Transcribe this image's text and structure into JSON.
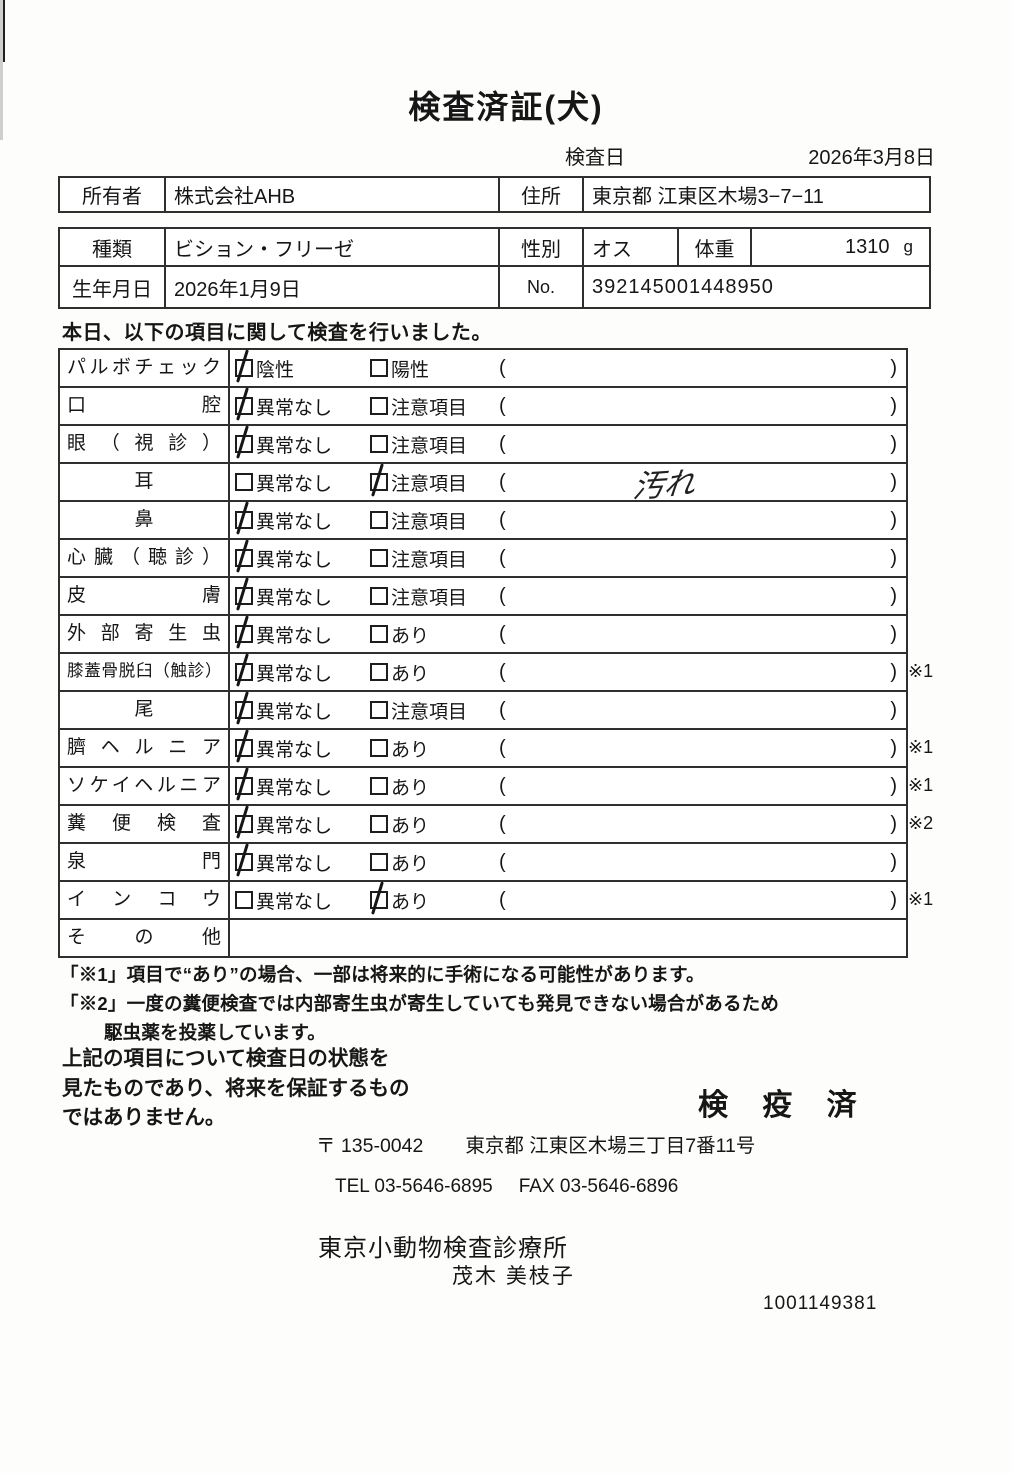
{
  "title": "検査済証(犬)",
  "inspection_date": {
    "label": "検査日",
    "value": "2026年3月8日"
  },
  "owner": {
    "owner_label": "所有者",
    "owner_value": "株式会社AHB",
    "address_label": "住所",
    "address_value": "東京都 江東区木場3−7−11"
  },
  "pet": {
    "breed_label": "種類",
    "breed_value": "ビション・フリーゼ",
    "sex_label": "性別",
    "sex_value": "オス",
    "weight_label": "体重",
    "weight_value": "1310",
    "weight_unit": "g",
    "birth_label": "生年月日",
    "birth_value": "2026年1月9日",
    "no_label": "No.",
    "no_value": "392145001448950"
  },
  "intro": "本日、以下の項目に関して検査を行いました。",
  "checklist": {
    "paren_open": "(",
    "paren_close": ")",
    "rows": [
      {
        "label": "パルボチェック",
        "align": "justify",
        "opt1": "陰性",
        "opt2": "陽性",
        "checked": 1,
        "note": "",
        "ref": ""
      },
      {
        "label": "口腔",
        "align": "justify",
        "opt1": "異常なし",
        "opt2": "注意項目",
        "checked": 1,
        "note": "",
        "ref": ""
      },
      {
        "label": "眼（視診）",
        "align": "justify",
        "opt1": "異常なし",
        "opt2": "注意項目",
        "checked": 1,
        "note": "",
        "ref": ""
      },
      {
        "label": "耳",
        "align": "center",
        "opt1": "異常なし",
        "opt2": "注意項目",
        "checked": 2,
        "note": "汚れ",
        "ref": ""
      },
      {
        "label": "鼻",
        "align": "center",
        "opt1": "異常なし",
        "opt2": "注意項目",
        "checked": 1,
        "note": "",
        "ref": ""
      },
      {
        "label": "心臓（聴診）",
        "align": "justify",
        "opt1": "異常なし",
        "opt2": "注意項目",
        "checked": 1,
        "note": "",
        "ref": ""
      },
      {
        "label": "皮膚",
        "align": "justify",
        "opt1": "異常なし",
        "opt2": "注意項目",
        "checked": 1,
        "note": "",
        "ref": ""
      },
      {
        "label": "外部寄生虫",
        "align": "justify",
        "opt1": "異常なし",
        "opt2": "あり",
        "checked": 1,
        "note": "",
        "ref": ""
      },
      {
        "label": "膝蓋骨脱臼（触診）",
        "align": "justify",
        "opt1": "異常なし",
        "opt2": "あり",
        "checked": 1,
        "note": "",
        "ref": "※1"
      },
      {
        "label": "尾",
        "align": "center",
        "opt1": "異常なし",
        "opt2": "注意項目",
        "checked": 1,
        "note": "",
        "ref": ""
      },
      {
        "label": "臍ヘルニア",
        "align": "justify",
        "opt1": "異常なし",
        "opt2": "あり",
        "checked": 1,
        "note": "",
        "ref": "※1"
      },
      {
        "label": "ソケイヘルニア",
        "align": "justify",
        "opt1": "異常なし",
        "opt2": "あり",
        "checked": 1,
        "note": "",
        "ref": "※1"
      },
      {
        "label": "糞便検査",
        "align": "justify",
        "opt1": "異常なし",
        "opt2": "あり",
        "checked": 1,
        "note": "",
        "ref": "※2"
      },
      {
        "label": "泉門",
        "align": "justify",
        "opt1": "異常なし",
        "opt2": "あり",
        "checked": 1,
        "note": "",
        "ref": ""
      },
      {
        "label": "インコウ",
        "align": "justify",
        "opt1": "異常なし",
        "opt2": "あり",
        "checked": 2,
        "note": "",
        "ref": "※1"
      },
      {
        "label": "その他",
        "align": "justify",
        "opt1": "",
        "opt2": "",
        "checked": 0,
        "note": "",
        "ref": ""
      }
    ]
  },
  "footnotes": [
    {
      "line1": "「※1」項目で“あり”の場合、一部は将来的に手術になる可能性があります。",
      "line2": ""
    },
    {
      "line1": "「※2」一度の糞便検査では内部寄生虫が寄生していても発見できない場合があるため",
      "line2": "駆虫薬を投薬しています。"
    }
  ],
  "disclaimer": [
    "上記の項目について検査日の状態を",
    "見たものであり、将来を保証するもの",
    "ではありません。"
  ],
  "stamp": "検 疫 済",
  "clinic": {
    "postal": "〒 135-0042",
    "address": "東京都 江東区木場三丁目7番11号",
    "tel": "TEL 03-5646-6895",
    "fax": "FAX 03-5646-6896",
    "name": "東京小動物検査診療所",
    "vet": "茂木 美枝子"
  },
  "serial": "1001149381"
}
